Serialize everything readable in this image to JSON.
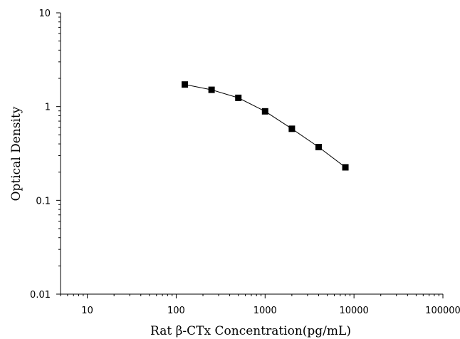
{
  "chart_data": {
    "type": "line",
    "title": "",
    "xlabel": "Rat β-CTx Concentration(pg/mL)",
    "ylabel": "Optical Density",
    "x_scale": "log",
    "y_scale": "log",
    "xlim": [
      5,
      100000
    ],
    "ylim": [
      0.01,
      10
    ],
    "x_ticks": [
      10,
      100,
      1000,
      10000,
      100000
    ],
    "x_tick_labels": [
      "10",
      "100",
      "1000",
      "10000",
      "100000"
    ],
    "y_ticks": [
      0.01,
      0.1,
      1,
      10
    ],
    "y_tick_labels": [
      "0.01",
      "0.1",
      "1",
      "10"
    ],
    "grid": false,
    "legend": "none",
    "series": [
      {
        "x": [
          125,
          250,
          500,
          1000,
          2000,
          4000,
          8000
        ],
        "y": [
          1.72,
          1.51,
          1.24,
          0.89,
          0.58,
          0.37,
          0.225
        ],
        "marker": "square",
        "color": "#000000"
      }
    ]
  }
}
